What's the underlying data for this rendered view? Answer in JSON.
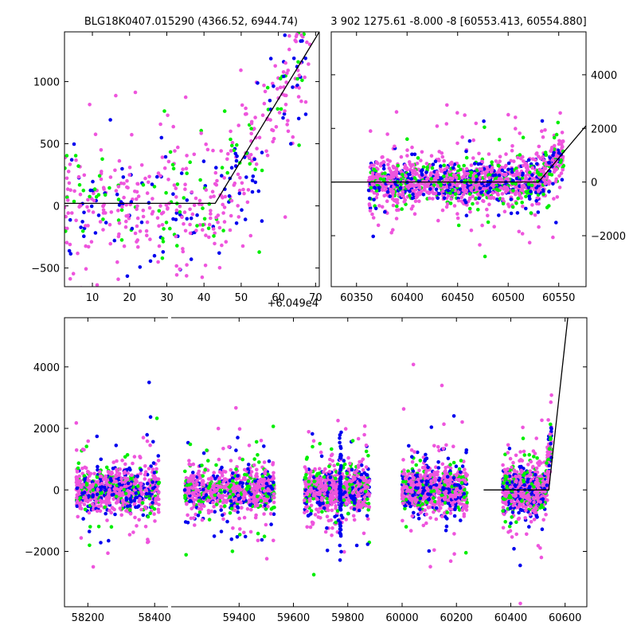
{
  "chart_data": [
    {
      "type": "scatter",
      "title": "BLG18K0407.015290 (4366.52, 6944.74)",
      "offset_label": "+6.049e4",
      "xlim": [
        2.5,
        71
      ],
      "ylim": [
        -650,
        1400
      ],
      "xticks": [
        10,
        20,
        30,
        40,
        50,
        60,
        70
      ],
      "yticks": [
        -500,
        0,
        500,
        1000
      ],
      "model_line": [
        [
          2.5,
          20
        ],
        [
          43,
          20
        ],
        [
          71,
          1400
        ]
      ],
      "series_colors": [
        "#ee55dd",
        "#0000ee",
        "#00ee00"
      ]
    },
    {
      "type": "scatter",
      "title": "3 902 1275.61 -8.000 -8 [60553.413, 60554.880]",
      "xlim": [
        60325,
        60577
      ],
      "ylim": [
        -3900,
        5600
      ],
      "xticks": [
        60350,
        60400,
        60450,
        60500,
        60550
      ],
      "yticks": [
        -2000,
        0,
        2000,
        4000
      ],
      "model_line": [
        [
          60325,
          0
        ],
        [
          60530,
          0
        ],
        [
          60577,
          2100
        ]
      ],
      "series_colors": [
        "#ee55dd",
        "#0000ee",
        "#00ee00"
      ]
    },
    {
      "type": "scatter",
      "xlim": [
        58130,
        60680
      ],
      "ylim": [
        -3800,
        5600
      ],
      "xticks": [
        58200,
        58400,
        59400,
        59600,
        59800,
        60000,
        60200,
        60400,
        60600
      ],
      "yticks": [
        -2000,
        0,
        2000,
        4000
      ],
      "model_line": [
        [
          60300,
          0
        ],
        [
          60540,
          0
        ],
        [
          60610,
          5600
        ]
      ],
      "series_colors": [
        "#ee55dd",
        "#0000ee",
        "#00ee00"
      ]
    }
  ]
}
